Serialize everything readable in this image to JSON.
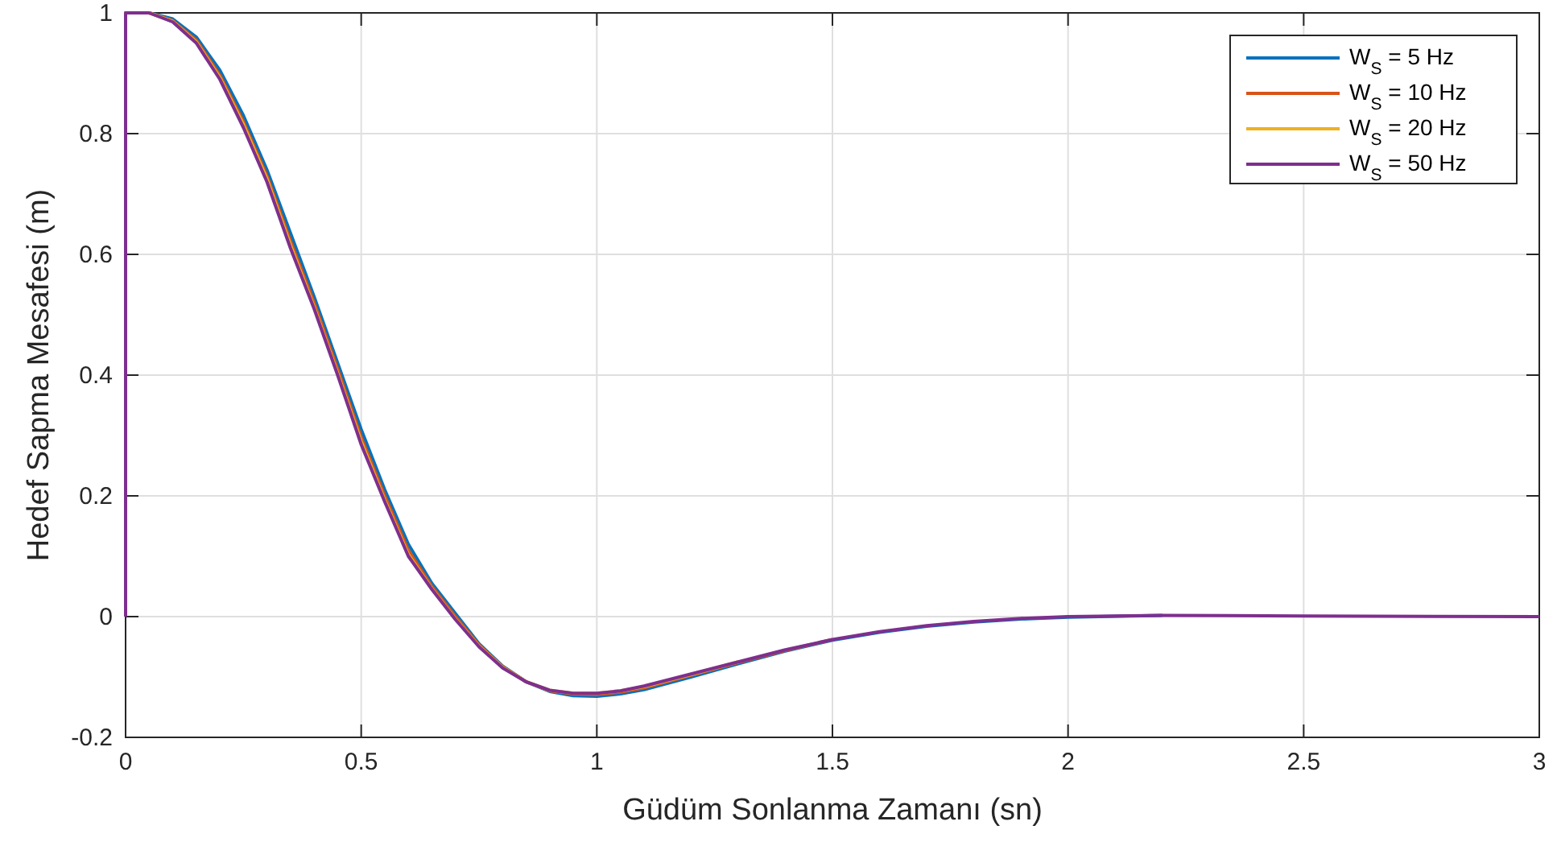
{
  "chart_data": {
    "type": "line",
    "xlabel": "Güdüm Sonlanma Zamanı (sn)",
    "ylabel": "Hedef Sapma Mesafesi (m)",
    "x": [
      0,
      0,
      0.05,
      0.1,
      0.15,
      0.2,
      0.25,
      0.3,
      0.35,
      0.4,
      0.45,
      0.5,
      0.55,
      0.6,
      0.65,
      0.7,
      0.75,
      0.8,
      0.85,
      0.9,
      0.95,
      1,
      1.05,
      1.1,
      1.2,
      1.3,
      1.4,
      1.5,
      1.6,
      1.7,
      1.8,
      1.9,
      2,
      2.2,
      2.5,
      3
    ],
    "series": [
      {
        "name": "W$_{S}$ = 5 Hz",
        "color": "#0072bd",
        "values": [
          0,
          1,
          1,
          0.99,
          0.96,
          0.905,
          0.83,
          0.74,
          0.635,
          0.53,
          0.42,
          0.31,
          0.21,
          0.12,
          0.055,
          0.005,
          -0.045,
          -0.082,
          -0.108,
          -0.124,
          -0.131,
          -0.132,
          -0.128,
          -0.121,
          -0.1,
          -0.078,
          -0.057,
          -0.039,
          -0.026,
          -0.016,
          -0.009,
          -0.004,
          -0.001,
          0.002,
          null,
          null
        ]
      },
      {
        "name": "W$_{S}$ = 10 Hz",
        "color": "#d95319",
        "values": [
          0,
          1,
          1,
          0.987,
          0.955,
          0.897,
          0.82,
          0.73,
          0.622,
          0.52,
          0.41,
          0.297,
          0.2,
          0.11,
          0.05,
          0,
          -0.047,
          -0.083,
          -0.108,
          -0.123,
          -0.128,
          -0.129,
          -0.125,
          -0.118,
          -0.097,
          -0.076,
          -0.056,
          -0.038,
          null,
          null,
          null,
          null,
          null,
          null,
          null,
          null
        ]
      },
      {
        "name": "W$_{S}$ = 20 Hz",
        "color": "#edb120",
        "values": [
          0,
          1,
          1,
          0.986,
          0.952,
          0.893,
          0.815,
          0.725,
          0.615,
          0.513,
          0.403,
          0.29,
          0.193,
          0.103,
          0.046,
          -0.004,
          -0.049,
          -0.084,
          -0.108,
          -0.122,
          -0.127,
          -0.127,
          -0.123,
          -0.116,
          -0.096,
          -0.075,
          null,
          null,
          null,
          null,
          null,
          null,
          null,
          null,
          null,
          null
        ]
      },
      {
        "name": "W$_{S}$ = 50 Hz",
        "color": "#7e2f8e",
        "values": [
          0,
          1,
          1,
          0.985,
          0.95,
          0.89,
          0.81,
          0.72,
          0.61,
          0.51,
          0.4,
          0.285,
          0.19,
          0.1,
          0.045,
          -0.005,
          -0.05,
          -0.085,
          -0.108,
          -0.122,
          -0.127,
          -0.127,
          -0.123,
          -0.115,
          -0.095,
          -0.075,
          -0.055,
          -0.038,
          -0.025,
          -0.015,
          -0.008,
          -0.003,
          0,
          0.002,
          0.001,
          0
        ]
      }
    ],
    "xlim": [
      0,
      3
    ],
    "xticks": [
      0,
      0.5,
      1,
      1.5,
      2,
      2.5,
      3
    ],
    "ylim": [
      -0.2,
      1
    ],
    "yticks": [
      -0.2,
      0,
      0.2,
      0.4,
      0.6,
      0.8,
      1
    ],
    "grid": true,
    "legend": "top right",
    "line_style": "solid",
    "marker": "none"
  }
}
